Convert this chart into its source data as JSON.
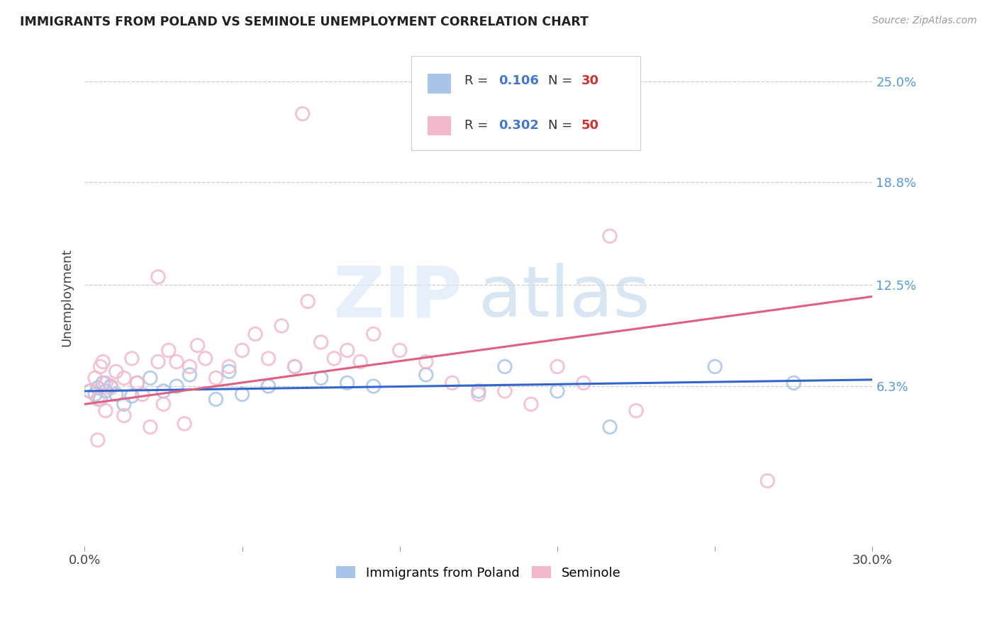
{
  "title": "IMMIGRANTS FROM POLAND VS SEMINOLE UNEMPLOYMENT CORRELATION CHART",
  "source": "Source: ZipAtlas.com",
  "ylabel": "Unemployment",
  "series1_color": "#a8c4e8",
  "series2_color": "#f4b8cc",
  "line1_color": "#3366cc",
  "line2_color": "#e06080",
  "series1_name": "Immigrants from Poland",
  "series2_name": "Seminole",
  "series1_R": 0.106,
  "series1_N": 30,
  "series2_R": 0.302,
  "series2_N": 50,
  "xmin": 0.0,
  "xmax": 0.3,
  "ymin": -0.035,
  "ymax": 0.27,
  "ytick_vals": [
    0.063,
    0.125,
    0.188,
    0.25
  ],
  "ytick_labels": [
    "6.3%",
    "12.5%",
    "18.8%",
    "25.0%"
  ],
  "xtick_vals": [
    0.0,
    0.06,
    0.12,
    0.18,
    0.24,
    0.3
  ],
  "xtick_labels": [
    "0.0%",
    "",
    "",
    "",
    "",
    "30.0%"
  ],
  "legend_blue_color": "#5599dd",
  "legend_pink_color": "#ff8899",
  "legend_R_color": "#4477cc",
  "legend_N_color": "#cc3333",
  "watermark_zip_color": "#dde8f4",
  "watermark_atlas_color": "#c5d8ee",
  "line1_intercept": 0.058,
  "line1_slope_per_unit": 0.02,
  "line2_intercept": 0.045,
  "line2_slope_per_unit": 0.2
}
